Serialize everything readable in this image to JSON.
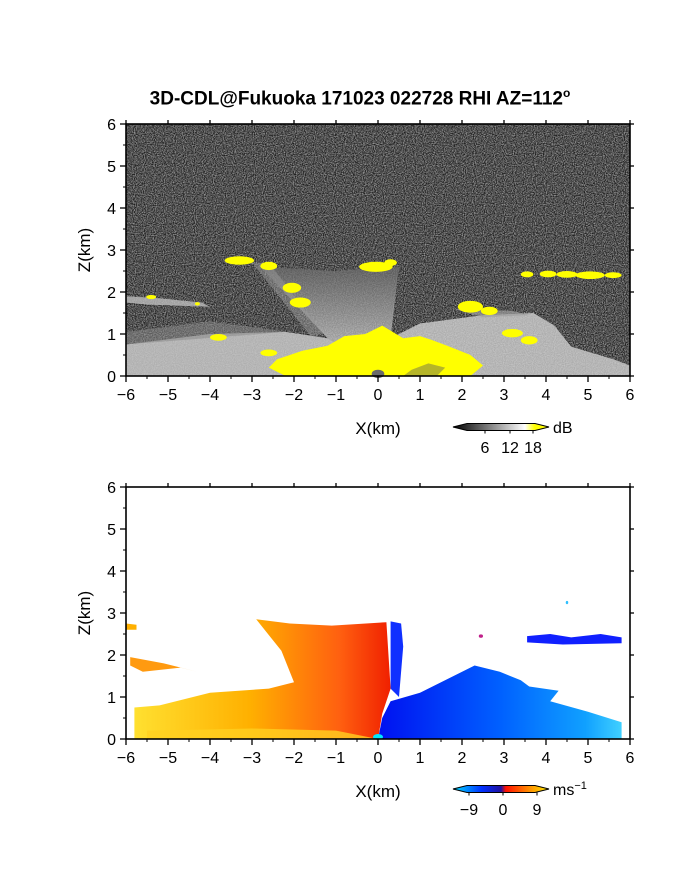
{
  "figure": {
    "title_main": "3D-CDL@Fukuoka 171023 022728 RHI AZ=112",
    "title_sup": "o"
  },
  "chart_data": [
    {
      "type": "heatmap",
      "panel": "top",
      "quantity": "signal intensity",
      "xlabel": "X(km)",
      "ylabel": "Z(km)",
      "xlim": [
        -6,
        6
      ],
      "ylim": [
        0,
        6
      ],
      "xticks": [
        -6,
        -5,
        -4,
        -3,
        -2,
        -1,
        0,
        1,
        2,
        3,
        4,
        5,
        6
      ],
      "yticks": [
        0,
        1,
        2,
        3,
        4,
        5,
        6
      ],
      "colorbar": {
        "unit": "dB",
        "ticks": [
          "6",
          "12",
          "18"
        ],
        "colors": [
          "#000000",
          "#ffffff",
          "#ffff00"
        ]
      },
      "features": [
        {
          "name": "saturated-core",
          "x_range": [
            -2.3,
            1.6
          ],
          "z_range": [
            0,
            1.25
          ],
          "level": 18
        },
        {
          "name": "left-fan",
          "x_range": [
            -6,
            -1
          ],
          "z_range": [
            0,
            2.6
          ],
          "level": 12
        },
        {
          "name": "right-fan",
          "x_range": [
            0.5,
            6
          ],
          "z_range": [
            0,
            1.5
          ],
          "level": 12
        },
        {
          "name": "upper-cloud-left",
          "x": -2.8,
          "z": 2.7,
          "level": 18
        },
        {
          "name": "upper-cloud-center",
          "x": 0,
          "z": 2.6,
          "level": 18
        },
        {
          "name": "upper-cloud-right",
          "x": 5,
          "z": 2.4,
          "level": 18
        }
      ]
    },
    {
      "type": "heatmap",
      "panel": "bottom",
      "quantity": "radial velocity",
      "xlabel": "X(km)",
      "ylabel": "Z(km)",
      "xlim": [
        -6,
        6
      ],
      "ylim": [
        0,
        6
      ],
      "xticks": [
        -6,
        -5,
        -4,
        -3,
        -2,
        -1,
        0,
        1,
        2,
        3,
        4,
        5,
        6
      ],
      "yticks": [
        0,
        1,
        2,
        3,
        4,
        5,
        6
      ],
      "colorbar": {
        "unit": "ms",
        "unit_sup": "−1",
        "ticks": [
          "−9",
          "0",
          "9"
        ],
        "colors": [
          "#00ddff",
          "#0030ff",
          "#ff1000",
          "#ffee00"
        ]
      },
      "features": [
        {
          "name": "receding-flow-left",
          "x_range": [
            -6,
            0
          ],
          "z_range": [
            0,
            2.9
          ],
          "velocity": 5
        },
        {
          "name": "approaching-flow-right",
          "x_range": [
            0,
            5.8
          ],
          "z_range": [
            0,
            1.2
          ],
          "velocity": -6
        },
        {
          "name": "upper-echo-right",
          "x_range": [
            3.5,
            5.8
          ],
          "z_range": [
            2.2,
            2.5
          ],
          "velocity": -9
        }
      ]
    }
  ]
}
